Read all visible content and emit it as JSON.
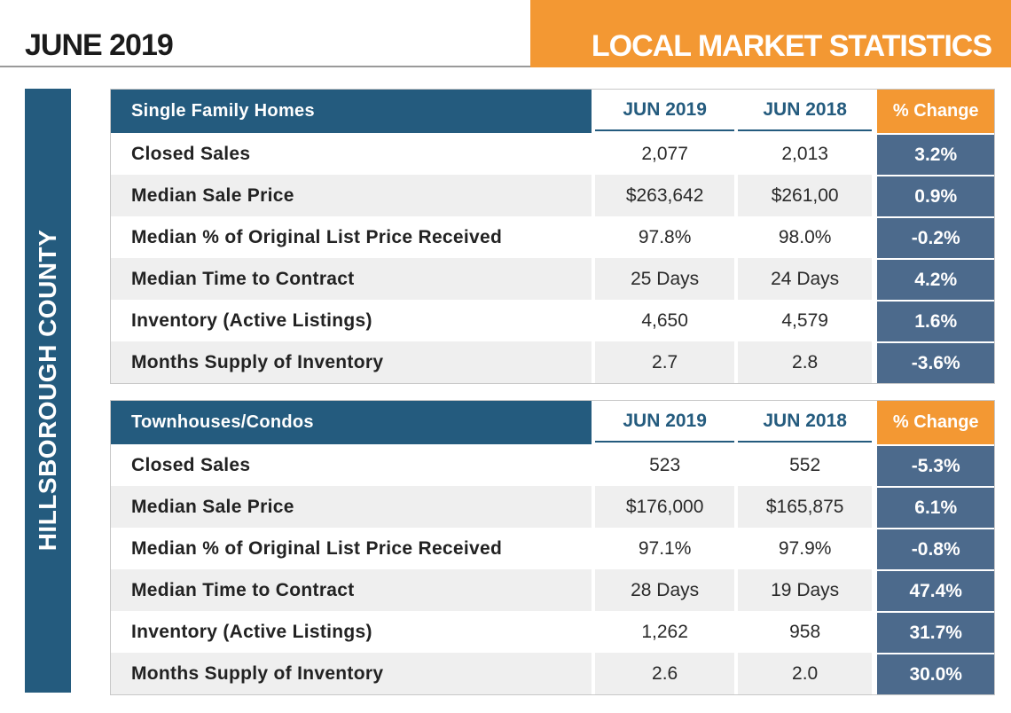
{
  "header": {
    "date_title": "JUNE 2019",
    "banner_title": "LOCAL MARKET STATISTICS"
  },
  "sidebar": {
    "county": "HILLSBOROUGH COUNTY"
  },
  "colors": {
    "navy": "#245b7e",
    "orange": "#f39833",
    "slate": "#4c6a8c",
    "shade": "#efefef"
  },
  "tables": [
    {
      "title": "Single Family Homes",
      "col1": "JUN 2019",
      "col2": "JUN 2018",
      "col3": "% Change",
      "rows": [
        {
          "label": "Closed Sales",
          "v1": "2,077",
          "v2": "2,013",
          "pct": "3.2%"
        },
        {
          "label": "Median Sale Price",
          "v1": "$263,642",
          "v2": "$261,00",
          "pct": "0.9%"
        },
        {
          "label": "Median % of Original List Price Received",
          "v1": "97.8%",
          "v2": "98.0%",
          "pct": "-0.2%"
        },
        {
          "label": "Median Time to Contract",
          "v1": "25 Days",
          "v2": "24 Days",
          "pct": "4.2%"
        },
        {
          "label": "Inventory (Active Listings)",
          "v1": "4,650",
          "v2": "4,579",
          "pct": "1.6%"
        },
        {
          "label": "Months Supply of Inventory",
          "v1": "2.7",
          "v2": "2.8",
          "pct": "-3.6%"
        }
      ]
    },
    {
      "title": "Townhouses/Condos",
      "col1": "JUN 2019",
      "col2": "JUN 2018",
      "col3": "% Change",
      "rows": [
        {
          "label": "Closed Sales",
          "v1": "523",
          "v2": "552",
          "pct": "-5.3%"
        },
        {
          "label": "Median Sale Price",
          "v1": "$176,000",
          "v2": "$165,875",
          "pct": "6.1%"
        },
        {
          "label": "Median % of Original List Price Received",
          "v1": "97.1%",
          "v2": "97.9%",
          "pct": "-0.8%"
        },
        {
          "label": "Median Time to Contract",
          "v1": "28 Days",
          "v2": "19 Days",
          "pct": "47.4%"
        },
        {
          "label": "Inventory (Active Listings)",
          "v1": "1,262",
          "v2": "958",
          "pct": "31.7%"
        },
        {
          "label": "Months Supply of Inventory",
          "v1": "2.6",
          "v2": "2.0",
          "pct": "30.0%"
        }
      ]
    }
  ]
}
